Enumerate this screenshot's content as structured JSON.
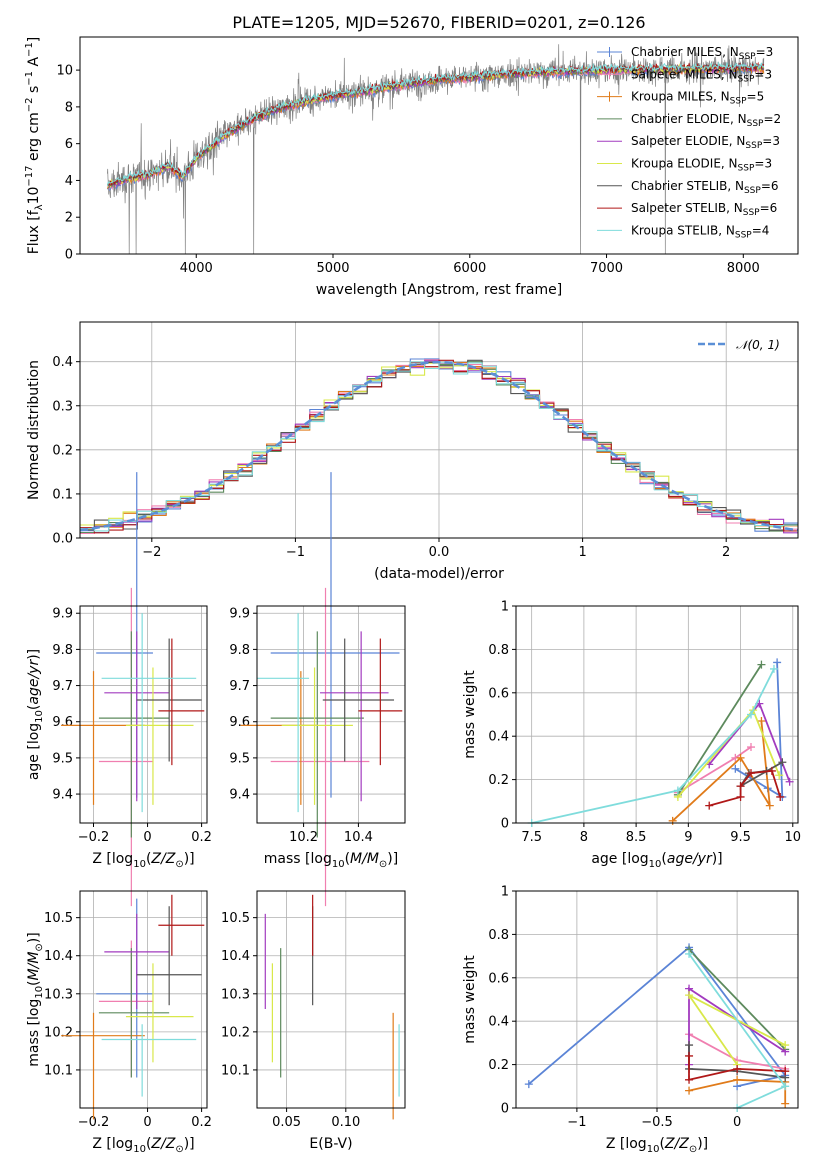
{
  "figure_title": "PLATE=1205, MJD=52670, FIBERID=0201, z=0.126",
  "colors": {
    "chabrier_miles": "#5b84d6",
    "salpeter_miles": "#f07fb0",
    "kroupa_miles": "#e07b1a",
    "chabrier_elodie": "#5d8a5d",
    "salpeter_elodie": "#a23bbf",
    "kroupa_elodie": "#d9e84a",
    "chabrier_stelib": "#555555",
    "salpeter_stelib": "#b01818",
    "kroupa_stelib": "#7fdcdc",
    "spectrum_data": "#808080",
    "normal_curve": "#5b8fd6"
  },
  "chart_data": [
    {
      "id": "spectrum",
      "type": "line",
      "xlabel": "wavelength [Angstrom, rest frame]",
      "ylabel": "Flux [f$_\\lambda$10$^{-17}$ erg cm$^{-2}$ s$^{-1}$ A$^{-1}$]",
      "ylabel_parts": [
        "Flux [f",
        "λ",
        "10",
        "−17",
        " erg cm",
        "−2",
        " s",
        "−1",
        " A",
        "−1",
        "]"
      ],
      "xlim": [
        3150,
        8400
      ],
      "ylim": [
        0,
        11.8
      ],
      "xticks": [
        4000,
        5000,
        6000,
        7000,
        8000
      ],
      "yticks": [
        0,
        2,
        4,
        6,
        8,
        10
      ],
      "legend_position": "upper right",
      "legend": [
        {
          "imf": "Chabrier",
          "lib": "MILES",
          "n": "3",
          "color_key": "chabrier_miles"
        },
        {
          "imf": "Salpeter",
          "lib": "MILES",
          "n": "3",
          "color_key": "salpeter_miles"
        },
        {
          "imf": "Kroupa",
          "lib": "MILES",
          "n": "5",
          "color_key": "kroupa_miles"
        },
        {
          "imf": "Chabrier",
          "lib": "ELODIE",
          "n": "2",
          "color_key": "chabrier_elodie"
        },
        {
          "imf": "Salpeter",
          "lib": "ELODIE",
          "n": "3",
          "color_key": "salpeter_elodie"
        },
        {
          "imf": "Kroupa",
          "lib": "ELODIE",
          "n": "3",
          "color_key": "kroupa_elodie"
        },
        {
          "imf": "Chabrier",
          "lib": "STELIB",
          "n": "6",
          "color_key": "chabrier_stelib"
        },
        {
          "imf": "Salpeter",
          "lib": "STELIB",
          "n": "6",
          "color_key": "salpeter_stelib"
        },
        {
          "imf": "Kroupa",
          "lib": "STELIB",
          "n": "4",
          "color_key": "kroupa_stelib"
        }
      ],
      "continuum": [
        [
          3350,
          3.7
        ],
        [
          3500,
          4.1
        ],
        [
          3650,
          4.3
        ],
        [
          3800,
          4.8
        ],
        [
          3900,
          4.2
        ],
        [
          4000,
          5.2
        ],
        [
          4200,
          6.4
        ],
        [
          4400,
          7.3
        ],
        [
          4600,
          7.9
        ],
        [
          4800,
          8.3
        ],
        [
          5000,
          8.6
        ],
        [
          5200,
          8.8
        ],
        [
          5500,
          9.2
        ],
        [
          5800,
          9.5
        ],
        [
          6000,
          9.6
        ],
        [
          6300,
          9.8
        ],
        [
          6600,
          9.9
        ],
        [
          7000,
          10.0
        ],
        [
          7500,
          10.05
        ],
        [
          8000,
          10.1
        ],
        [
          8150,
          10.1
        ]
      ],
      "dropouts": [
        3510,
        3560,
        3920,
        4420,
        6810,
        7430
      ]
    },
    {
      "id": "residual_histogram",
      "type": "bar",
      "xlabel": "(data-model)/error",
      "ylabel": "Normed distribution",
      "xlim": [
        -2.5,
        2.5
      ],
      "ylim": [
        0,
        0.49
      ],
      "xticks": [
        -2,
        -1,
        0,
        1,
        2
      ],
      "yticks": [
        0.0,
        0.1,
        0.2,
        0.3,
        0.4
      ],
      "bin_width": 0.1,
      "legend_label": "𝒩(0, 1)",
      "legend_position": "upper right"
    },
    {
      "id": "age_vs_Z",
      "type": "scatter",
      "xlabel": "Z [log10(Z/Z☉)]",
      "ylabel": "age  [log10(age/yr)]",
      "xlim": [
        -0.25,
        0.22
      ],
      "ylim": [
        9.32,
        9.92
      ],
      "xticks": [
        -0.2,
        0.0,
        0.2
      ],
      "yticks": [
        9.4,
        9.5,
        9.6,
        9.7,
        9.8,
        9.9
      ]
    },
    {
      "id": "age_vs_mass",
      "type": "scatter",
      "xlabel": "mass [log10(M/M☉)]",
      "xlim": [
        10.03,
        10.57
      ],
      "ylim": [
        9.32,
        9.92
      ],
      "xticks": [
        10.2,
        10.4
      ],
      "yticks": [
        9.4,
        9.5,
        9.6,
        9.7,
        9.8,
        9.9
      ]
    },
    {
      "id": "massweight_vs_age",
      "type": "line",
      "xlabel": "age  [log10(age/yr)]",
      "ylabel": "mass weight",
      "xlim": [
        7.35,
        10.05
      ],
      "ylim": [
        0,
        1
      ],
      "xticks": [
        7.5,
        8.0,
        8.5,
        9.0,
        9.5,
        10.0
      ],
      "yticks": [
        0.0,
        0.2,
        0.4,
        0.6,
        0.8,
        1.0
      ]
    },
    {
      "id": "mass_vs_Z",
      "type": "scatter",
      "xlabel": "Z [log10(Z/Z☉)]",
      "ylabel": "mass [log10(M/M☉)]",
      "xlim": [
        -0.25,
        0.22
      ],
      "ylim": [
        10.0,
        10.57
      ],
      "xticks": [
        -0.2,
        0.0,
        0.2
      ],
      "yticks": [
        10.1,
        10.2,
        10.3,
        10.4,
        10.5
      ]
    },
    {
      "id": "mass_vs_ebv",
      "type": "scatter",
      "xlabel": "E(B-V)",
      "xlim": [
        0.025,
        0.15
      ],
      "ylim": [
        10.0,
        10.57
      ],
      "xticks": [
        0.05,
        0.1
      ],
      "yticks": [
        10.1,
        10.2,
        10.3,
        10.4,
        10.5
      ]
    },
    {
      "id": "massweight_vs_Z",
      "type": "line",
      "xlabel": "Z [log10(Z/Z☉)]",
      "ylabel": "mass weight",
      "xlim": [
        -1.38,
        0.38
      ],
      "ylim": [
        0,
        1
      ],
      "xticks": [
        -1.0,
        -0.5,
        0.0
      ],
      "yticks": [
        0.0,
        0.2,
        0.4,
        0.6,
        0.8,
        1.0
      ]
    }
  ],
  "fits": [
    {
      "color_key": "chabrier_miles",
      "Z": [
        -0.04,
        0.15,
        0.06
      ],
      "age": [
        9.79,
        0.4,
        0.5
      ],
      "mass": [
        10.3,
        0.22,
        0.25
      ],
      "ebv": null,
      "sfh_age": [
        [
          9.85,
          0.74
        ],
        [
          9.9,
          0.12
        ],
        [
          9.76,
          0.16
        ],
        [
          9.45,
          0.25
        ]
      ],
      "sfh_Z": [
        [
          -1.3,
          0.11
        ],
        [
          -0.3,
          0.74
        ],
        [
          0.3,
          0.15
        ],
        [
          0.0,
          0.1
        ]
      ]
    },
    {
      "color_key": "salpeter_miles",
      "Z": [
        -0.06,
        0.12,
        0.08
      ],
      "age": [
        9.49,
        0.4,
        0.48
      ],
      "mass": [
        10.28,
        0.2,
        0.16
      ],
      "ebv": null,
      "sfh_age": [
        [
          9.6,
          0.35
        ],
        [
          9.45,
          0.3
        ],
        [
          8.9,
          0.14
        ]
      ],
      "sfh_Z": [
        [
          -0.3,
          0.34
        ],
        [
          0.0,
          0.22
        ],
        [
          0.3,
          0.18
        ]
      ]
    },
    {
      "color_key": "kroupa_miles",
      "Z": [
        -0.2,
        0.12,
        0.19
      ],
      "age": [
        9.59,
        0.22,
        0.15
      ],
      "mass": [
        10.19,
        0.22,
        0.06
      ],
      "ebv": [
        0.14,
        0.15
      ],
      "sfh_age": [
        [
          9.7,
          0.47
        ],
        [
          9.78,
          0.08
        ],
        [
          9.5,
          0.3
        ],
        [
          8.85,
          0.01
        ]
      ],
      "sfh_Z": [
        [
          -0.3,
          0.08
        ],
        [
          0.0,
          0.13
        ],
        [
          0.3,
          0.12
        ],
        [
          0.3,
          0.02
        ]
      ]
    },
    {
      "color_key": "chabrier_elodie",
      "Z": [
        -0.06,
        0.12,
        0.14
      ],
      "age": [
        9.61,
        0.33,
        0.24
      ],
      "mass": [
        10.25,
        0.17,
        0.17
      ],
      "ebv": [
        0.045,
        0.045
      ],
      "sfh_age": [
        [
          8.9,
          0.13
        ],
        [
          9.7,
          0.73
        ]
      ],
      "sfh_Z": [
        [
          0.3,
          0.27
        ],
        [
          -0.3,
          0.73
        ]
      ]
    },
    {
      "color_key": "salpeter_elodie",
      "Z": [
        -0.04,
        0.12,
        0.12
      ],
      "age": [
        9.68,
        0.3,
        0.17
      ],
      "mass": [
        10.41,
        0.15,
        0.1
      ],
      "ebv": [
        0.032,
        0.032
      ],
      "sfh_age": [
        [
          9.2,
          0.27
        ],
        [
          9.68,
          0.55
        ],
        [
          9.97,
          0.19
        ]
      ],
      "sfh_Z": [
        [
          0.3,
          0.26
        ],
        [
          -0.3,
          0.55
        ],
        [
          -0.3,
          0.2
        ]
      ]
    },
    {
      "color_key": "kroupa_elodie",
      "Z": [
        0.02,
        0.1,
        0.15
      ],
      "age": [
        9.59,
        0.22,
        0.16
      ],
      "mass": [
        10.24,
        0.12,
        0.14
      ],
      "ebv": [
        0.038,
        0.038
      ],
      "sfh_age": [
        [
          8.9,
          0.12
        ],
        [
          9.62,
          0.52
        ],
        [
          9.87,
          0.22
        ]
      ],
      "sfh_Z": [
        [
          0.3,
          0.29
        ],
        [
          -0.3,
          0.52
        ],
        [
          0.0,
          0.2
        ]
      ]
    },
    {
      "color_key": "chabrier_stelib",
      "Z": [
        0.08,
        0.12,
        0.12
      ],
      "age": [
        9.66,
        0.17,
        0.17
      ],
      "mass": [
        10.35,
        0.08,
        0.18
      ],
      "ebv": [
        0.072,
        0.072
      ],
      "sfh_age": [
        [
          9.9,
          0.28
        ],
        [
          9.5,
          0.17
        ],
        [
          9.58,
          0.23
        ],
        [
          9.75,
          0.24
        ]
      ],
      "sfh_Z": [
        [
          -0.3,
          0.29
        ],
        [
          -0.3,
          0.18
        ],
        [
          0.0,
          0.17
        ],
        [
          0.3,
          0.14
        ]
      ]
    },
    {
      "color_key": "salpeter_stelib",
      "Z": [
        0.09,
        0.05,
        0.12
      ],
      "age": [
        9.63,
        0.15,
        0.2
      ],
      "mass": [
        10.48,
        0.08,
        0.08
      ],
      "ebv": [
        0.072,
        0.072
      ],
      "sfh_age": [
        [
          9.2,
          0.08
        ],
        [
          9.5,
          0.12
        ],
        [
          9.5,
          0.17
        ],
        [
          9.6,
          0.23
        ],
        [
          9.8,
          0.24
        ],
        [
          9.88,
          0.12
        ]
      ],
      "sfh_Z": [
        [
          -0.3,
          0.24
        ],
        [
          -0.3,
          0.13
        ],
        [
          0.0,
          0.18
        ],
        [
          0.3,
          0.17
        ],
        [
          0.3,
          0.17
        ]
      ]
    },
    {
      "color_key": "kroupa_stelib",
      "Z": [
        -0.02,
        0.15,
        0.2
      ],
      "age": [
        9.72,
        0.37,
        0.18
      ],
      "mass": [
        10.18,
        0.15,
        0.04
      ],
      "ebv": [
        0.145,
        0.145
      ],
      "sfh_age": [
        [
          7.5,
          0.0
        ],
        [
          8.9,
          0.15
        ],
        [
          9.6,
          0.5
        ],
        [
          9.82,
          0.71
        ]
      ],
      "sfh_Z": [
        [
          0.0,
          0.0
        ],
        [
          0.3,
          0.1
        ],
        [
          -0.3,
          0.71
        ]
      ]
    }
  ]
}
